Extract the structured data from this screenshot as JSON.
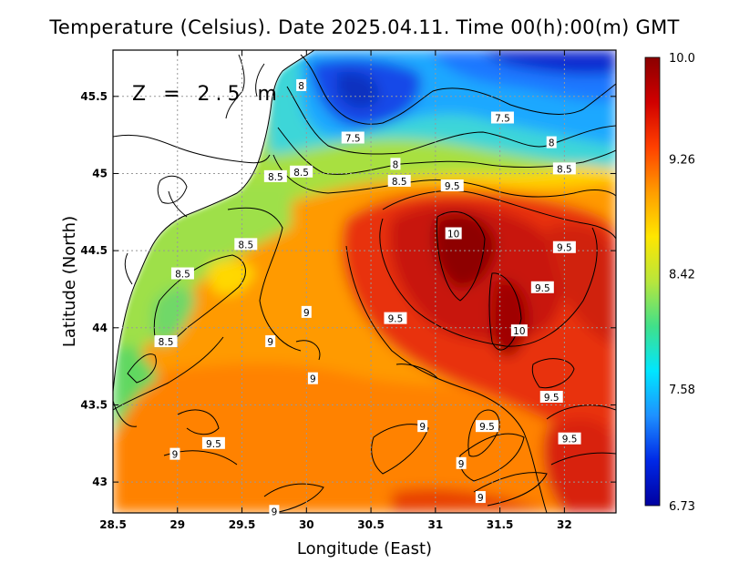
{
  "title": "Temperature (Celsius). Date 2025.04.11. Time 00(h):00(m) GMT",
  "depth_label": "Z = 2.5 m",
  "chart_data": {
    "type": "heatmap",
    "title": "Temperature (Celsius). Date 2025.04.11. Time 00(h):00(m) GMT",
    "xlabel": "Longitude (East)",
    "ylabel": "Latitude (North)",
    "xlim": [
      28.5,
      32.4
    ],
    "ylim": [
      42.8,
      45.8
    ],
    "xticks": [
      28.5,
      29,
      29.5,
      30,
      30.5,
      31,
      31.5,
      32
    ],
    "xtick_labels": [
      "28.5",
      "29",
      "29.5",
      "30",
      "30.5",
      "31",
      "31.5",
      "32"
    ],
    "yticks": [
      43,
      43.5,
      44,
      44.5,
      45,
      45.5
    ],
    "ytick_labels": [
      "43",
      "43.5",
      "44",
      "44.5",
      "45",
      "45.5"
    ],
    "grid": true,
    "colorbar": {
      "min": 6.73,
      "max": 10.0,
      "ticks": [
        10.0,
        9.26,
        8.42,
        7.58,
        6.73
      ],
      "tick_labels": [
        "10.0",
        "9.26",
        "8.42",
        "7.58",
        "6.73"
      ],
      "colors": [
        "#0000a0",
        "#0028e6",
        "#1e90ff",
        "#00e6ff",
        "#40e08a",
        "#b8e63c",
        "#ffe600",
        "#ff9c00",
        "#ff4000",
        "#d00000",
        "#8b0000"
      ]
    },
    "contour_labels": [
      {
        "text": "8",
        "lon": 29.96,
        "lat": 45.57
      },
      {
        "text": "7.5",
        "lon": 30.36,
        "lat": 45.23
      },
      {
        "text": "7.5",
        "lon": 31.52,
        "lat": 45.36
      },
      {
        "text": "8",
        "lon": 31.9,
        "lat": 45.2
      },
      {
        "text": "8",
        "lon": 30.69,
        "lat": 45.06
      },
      {
        "text": "8.5",
        "lon": 29.76,
        "lat": 44.98
      },
      {
        "text": "8.5",
        "lon": 29.96,
        "lat": 45.01
      },
      {
        "text": "8.5",
        "lon": 30.72,
        "lat": 44.95
      },
      {
        "text": "8.5",
        "lon": 32.0,
        "lat": 45.03
      },
      {
        "text": "9.5",
        "lon": 31.13,
        "lat": 44.92
      },
      {
        "text": "10",
        "lon": 31.14,
        "lat": 44.61
      },
      {
        "text": "9.5",
        "lon": 32.0,
        "lat": 44.52
      },
      {
        "text": "8.5",
        "lon": 29.53,
        "lat": 44.54
      },
      {
        "text": "8.5",
        "lon": 29.04,
        "lat": 44.35
      },
      {
        "text": "9.5",
        "lon": 31.83,
        "lat": 44.26
      },
      {
        "text": "9",
        "lon": 30.0,
        "lat": 44.1
      },
      {
        "text": "9.5",
        "lon": 30.69,
        "lat": 44.06
      },
      {
        "text": "10",
        "lon": 31.65,
        "lat": 43.98
      },
      {
        "text": "8.5",
        "lon": 28.91,
        "lat": 43.91
      },
      {
        "text": "9",
        "lon": 29.72,
        "lat": 43.91
      },
      {
        "text": "9",
        "lon": 30.05,
        "lat": 43.67
      },
      {
        "text": "9.5",
        "lon": 31.9,
        "lat": 43.55
      },
      {
        "text": "9",
        "lon": 30.9,
        "lat": 43.36
      },
      {
        "text": "9.5",
        "lon": 31.4,
        "lat": 43.36
      },
      {
        "text": "9.5",
        "lon": 29.28,
        "lat": 43.25
      },
      {
        "text": "9.5",
        "lon": 32.04,
        "lat": 43.28
      },
      {
        "text": "9",
        "lon": 28.98,
        "lat": 43.18
      },
      {
        "text": "9",
        "lon": 31.2,
        "lat": 43.12
      },
      {
        "text": "9",
        "lon": 31.35,
        "lat": 42.9
      },
      {
        "text": "9",
        "lon": 29.75,
        "lat": 42.81
      }
    ]
  }
}
